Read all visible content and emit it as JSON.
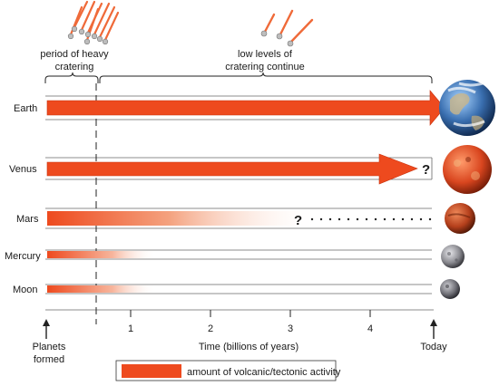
{
  "annotations": {
    "heavy_period": [
      "period of heavy",
      "cratering"
    ],
    "low_levels": [
      "low levels of",
      "cratering continue"
    ]
  },
  "planets": [
    {
      "name": "Earth",
      "activity": "ongoing",
      "color": "#ee4a1e"
    },
    {
      "name": "Venus",
      "activity": "uncertain",
      "color": "#ee4a1e"
    },
    {
      "name": "Mars",
      "activity": "uncertain-faded",
      "color": "#ee4a1e"
    },
    {
      "name": "Mercury",
      "activity": "ended-early",
      "color": "#ee4a1e"
    },
    {
      "name": "Moon",
      "activity": "ended-early",
      "color": "#ee4a1e"
    }
  ],
  "question_mark": "?",
  "axis": {
    "ticks": [
      "1",
      "2",
      "3",
      "4"
    ],
    "start_label": [
      "Planets",
      "formed"
    ],
    "end_label": "Today",
    "title": "Time (billions of years)"
  },
  "legend": {
    "text": "amount of volcanic/tectonic activity",
    "color": "#ee4a1e"
  },
  "colors": {
    "activity": "#ee4a1e",
    "activity_dark": "#c8300c",
    "line": "#555555",
    "earth": "#3a6fb0",
    "venus": "#d9461f",
    "mars": "#b5401c",
    "mercury": "#8a8a90",
    "moon": "#6f6f76"
  }
}
